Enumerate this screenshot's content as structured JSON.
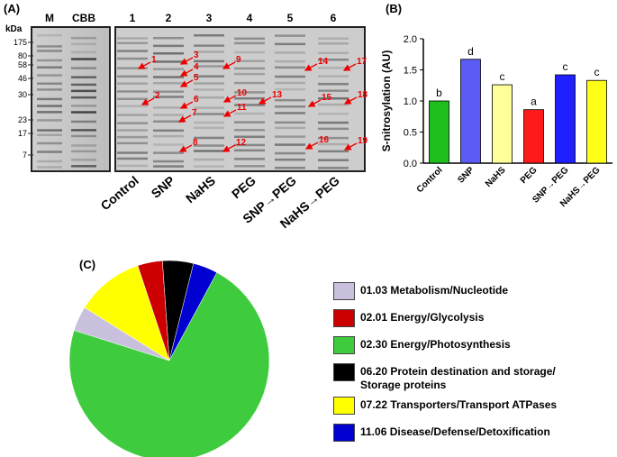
{
  "panel_a": {
    "label": "(A)",
    "unit": "kDa",
    "markers": [
      175,
      80,
      58,
      46,
      30,
      23,
      17,
      7
    ],
    "lanes": [
      "M",
      "CBB",
      "1",
      "2",
      "3",
      "4",
      "5",
      "6"
    ],
    "treatments": [
      "Control",
      "SNP",
      "NaHS",
      "PEG",
      "SNP→PEG",
      "NaHS→PEG"
    ],
    "spots": [
      "1",
      "2",
      "3",
      "4",
      "5",
      "6",
      "7",
      "8",
      "9",
      "10",
      "11",
      "12",
      "13",
      "14",
      "15",
      "16",
      "17",
      "18",
      "19"
    ]
  },
  "chart_data": [
    {
      "type": "bar",
      "panel": "(B)",
      "ylabel": "S-nitrosylation (AU)",
      "categories": [
        "Control",
        "SNP",
        "NaHS",
        "PEG",
        "SNP→PEG",
        "NaHS→PEG"
      ],
      "values": [
        1.0,
        1.67,
        1.26,
        0.86,
        1.42,
        1.33
      ],
      "annotations": [
        "b",
        "d",
        "c",
        "a",
        "c",
        "c"
      ],
      "colors": [
        "#1fbf1f",
        "#5b5bf5",
        "#ffff99",
        "#ff1a1a",
        "#1f1fff",
        "#ffff1a"
      ],
      "ylim": [
        0,
        2.0
      ],
      "yticks": [
        {
          "value": 0,
          "label": "0.0"
        },
        0.5,
        {
          "value": 1,
          "label": "1.0"
        },
        1.5,
        {
          "value": 2,
          "label": "2.0"
        }
      ]
    },
    {
      "type": "pie",
      "panel": "(C)",
      "categories": [
        "06.20 Protein destination and storage/ Storage proteins",
        "11.06 Disease/Defense/Detoxification",
        "02.30 Energy/Photosynthesis",
        "01.03 Metabolism/Nucleotide",
        "07.22 Transporters/Transport ATPases",
        "02.01 Energy/Glycolysis"
      ],
      "values": [
        5,
        4,
        72,
        4,
        11,
        4
      ],
      "colors": [
        "#000000",
        "#0000d0",
        "#3ecc3e",
        "#c8c0dc",
        "#ffff00",
        "#cc0000"
      ]
    }
  ]
}
